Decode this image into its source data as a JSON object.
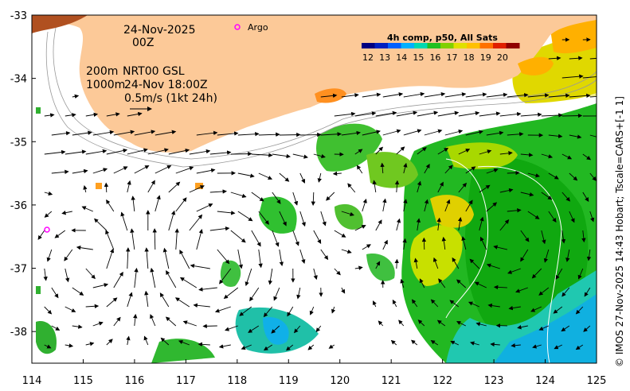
{
  "map": {
    "date_line": "24-Nov-2025",
    "time_line": "00Z",
    "depth_line_1": "200m",
    "depth_line_2": "1000m",
    "product_line_1": "NRT00 GSL",
    "product_line_2": "24-Nov 18:00Z",
    "scale_label": "0.5m/s (1kt 24h)",
    "argo_label": "Argo",
    "credit": "© IMOS 27-Nov-2025 14:43 Hobart; Tscale=CARS+[-1 1]",
    "colors": {
      "land": "#fcc998",
      "argo": "#ff00ff",
      "arrow": "#000000",
      "contour": "#999999"
    }
  },
  "colorbar": {
    "title": "4h comp, p50, All Sats",
    "ticks": [
      "12",
      "13",
      "14",
      "15",
      "16",
      "17",
      "18",
      "19",
      "20"
    ],
    "min": 12,
    "max": 21,
    "colors": [
      "#000080",
      "#0020c0",
      "#0060ff",
      "#00b0ff",
      "#00d8b0",
      "#20c020",
      "#80d000",
      "#e0e000",
      "#ffc000",
      "#ff7000",
      "#e02000",
      "#900000"
    ]
  },
  "axes": {
    "x_ticks": [
      "114",
      "115",
      "116",
      "117",
      "118",
      "119",
      "120",
      "121",
      "122",
      "123",
      "124",
      "125"
    ],
    "y_ticks": [
      "-33",
      "-34",
      "-35",
      "-36",
      "-37",
      "-38"
    ],
    "x_range": [
      114,
      125
    ],
    "y_range": [
      -38.5,
      -33
    ]
  }
}
